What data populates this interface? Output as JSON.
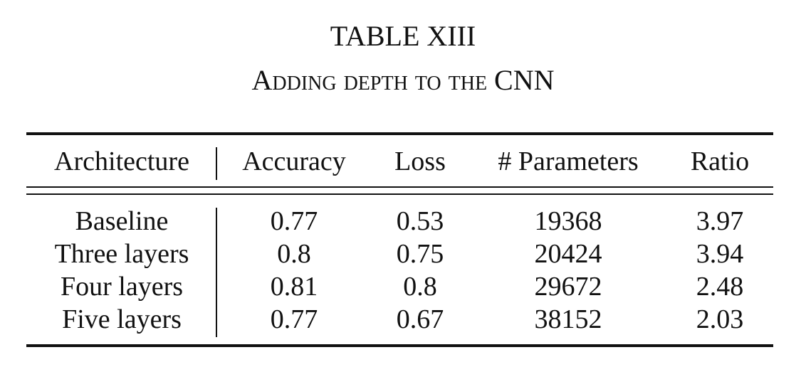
{
  "caption": {
    "label": "TABLE XIII",
    "title": "Adding depth to the CNN"
  },
  "table": {
    "headers": [
      "Architecture",
      "Accuracy",
      "Loss",
      "# Parameters",
      "Ratio"
    ],
    "rows": [
      [
        "Baseline",
        "0.77",
        "0.53",
        "19368",
        "3.97"
      ],
      [
        "Three layers",
        "0.8",
        "0.75",
        "20424",
        "3.94"
      ],
      [
        "Four layers",
        "0.81",
        "0.8",
        "29672",
        "2.48"
      ],
      [
        "Five layers",
        "0.77",
        "0.67",
        "38152",
        "2.03"
      ]
    ]
  },
  "chart_data": {
    "type": "table",
    "title": "Adding depth to the CNN",
    "columns": [
      "Architecture",
      "Accuracy",
      "Loss",
      "# Parameters",
      "Ratio"
    ],
    "rows": [
      {
        "Architecture": "Baseline",
        "Accuracy": 0.77,
        "Loss": 0.53,
        "# Parameters": 19368,
        "Ratio": 3.97
      },
      {
        "Architecture": "Three layers",
        "Accuracy": 0.8,
        "Loss": 0.75,
        "# Parameters": 20424,
        "Ratio": 3.94
      },
      {
        "Architecture": "Four layers",
        "Accuracy": 0.81,
        "Loss": 0.8,
        "# Parameters": 29672,
        "Ratio": 2.48
      },
      {
        "Architecture": "Five layers",
        "Accuracy": 0.77,
        "Loss": 0.67,
        "# Parameters": 38152,
        "Ratio": 2.03
      }
    ]
  }
}
